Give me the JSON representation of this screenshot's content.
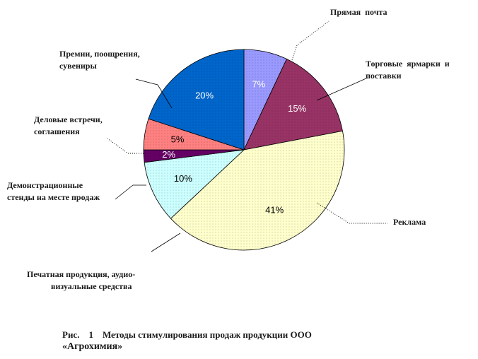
{
  "chart_data": {
    "type": "pie",
    "start_angle_deg": 0,
    "direction": "clockwise",
    "slices": [
      {
        "label_lines": [
          "Прямая  почта"
        ],
        "value": 7,
        "display": "7%",
        "color": "#9999ff",
        "text_color": "#ffffff"
      },
      {
        "label_lines": [
          "Торговые  ярмарки  и",
          "поставки"
        ],
        "value": 15,
        "display": "15%",
        "color": "#993366",
        "text_color": "#ffffff"
      },
      {
        "label_lines": [
          "Реклама"
        ],
        "value": 41,
        "display": "41%",
        "color": "#ffffcc",
        "text_color": "#000000"
      },
      {
        "label_lines": [
          "Печатная продукция, аудио-",
          "визуальные средства"
        ],
        "value": 10,
        "display": "10%",
        "color": "#ccffff",
        "text_color": "#000000"
      },
      {
        "label_lines": [
          "Демонстрационные",
          "стенды на месте продаж"
        ],
        "value": 2,
        "display": "2%",
        "color": "#660066",
        "text_color": "#ffffff"
      },
      {
        "label_lines": [
          "Деловые встречи,",
          "соглашения"
        ],
        "value": 5,
        "display": "5%",
        "color": "#ff8080",
        "text_color": "#000000"
      },
      {
        "label_lines": [
          "Премии, поощрения,",
          "сувениры"
        ],
        "value": 20,
        "display": "20%",
        "color": "#0066cc",
        "text_color": "#ffffff"
      }
    ]
  },
  "caption": {
    "line1": "Рис.    1    Методы стимулирования продаж продукции ООО",
    "line2": "«Агрохимия»"
  }
}
